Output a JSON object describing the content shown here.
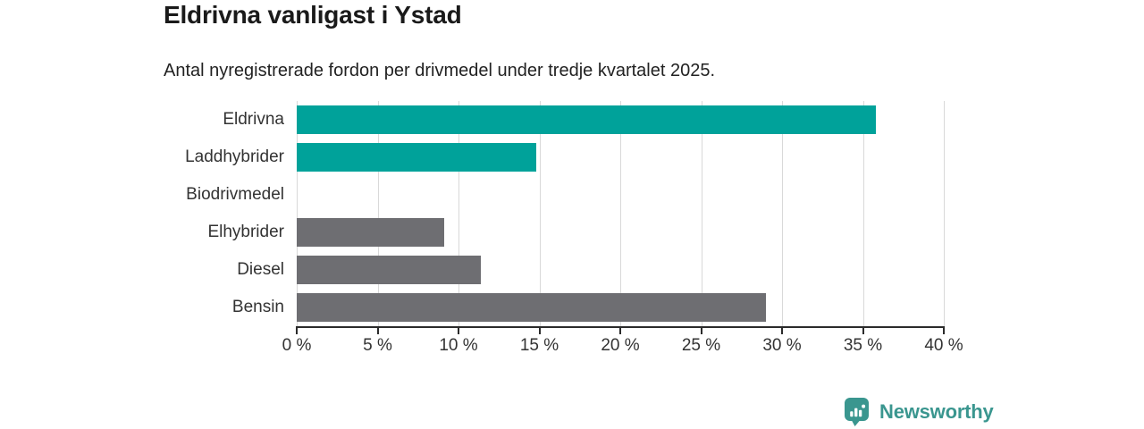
{
  "header": {
    "title": "Eldrivna vanligast i Ystad",
    "subtitle": "Antal nyregistrerade fordon per drivmedel under tredje kvartalet 2025."
  },
  "chart_data": {
    "type": "bar",
    "orientation": "horizontal",
    "title": "Eldrivna vanligast i Ystad",
    "subtitle": "Antal nyregistrerade fordon per drivmedel under tredje kvartalet 2025.",
    "categories": [
      "Eldrivna",
      "Laddhybrider",
      "Biodrivmedel",
      "Elhybrider",
      "Diesel",
      "Bensin"
    ],
    "values": [
      35.8,
      14.8,
      0,
      9.1,
      11.4,
      29
    ],
    "unit": "%",
    "xlabel": "",
    "ylabel": "",
    "xlim": [
      0,
      40
    ],
    "x_ticks": [
      0,
      5,
      10,
      15,
      20,
      25,
      30,
      35,
      40
    ],
    "x_tick_labels": [
      "0 %",
      "5 %",
      "10 %",
      "15 %",
      "20 %",
      "25 %",
      "30 %",
      "35 %",
      "40 %"
    ],
    "grid": true,
    "legend": false,
    "bar_colors": [
      "#00a29a",
      "#00a29a",
      "#6e6e72",
      "#6e6e72",
      "#6e6e72",
      "#6e6e72"
    ]
  },
  "colors": {
    "accent_teal": "#00a29a",
    "neutral_gray": "#6e6e72",
    "grid": "#d9d9d9",
    "axis": "#2b2b2b",
    "text": "#333333",
    "logo": "#3a968f"
  },
  "footer": {
    "brand": "Newsworthy",
    "logo_icon": "newsworthy-logo-icon"
  }
}
